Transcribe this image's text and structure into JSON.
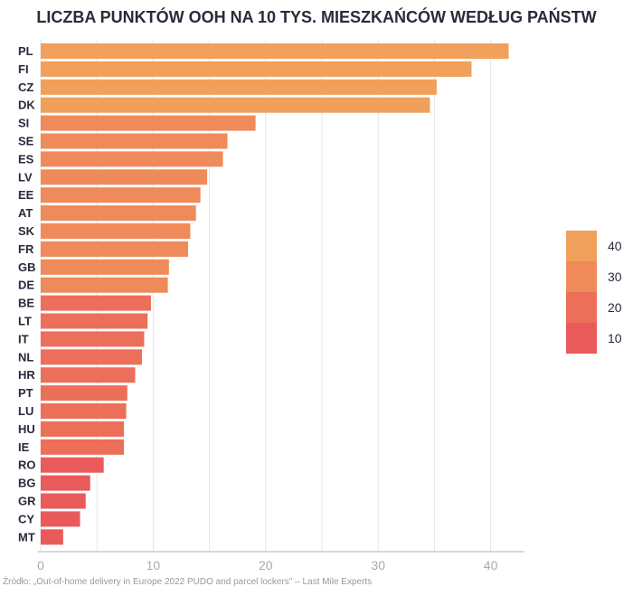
{
  "chart_data": {
    "type": "bar",
    "orientation": "horizontal",
    "title": "LICZBA PUNKTÓW OOH NA 10 TYS. MIESZKAŃCÓW WEDŁUG PAŃSTW",
    "source": "Źródło: „Out-of-home delivery in Europe 2022 PUDO and parcel lockers\" – Last Mile Experts",
    "categories": [
      "PL",
      "FI",
      "CZ",
      "DK",
      "SI",
      "SE",
      "ES",
      "LV",
      "EE",
      "AT",
      "SK",
      "FR",
      "GB",
      "DE",
      "BE",
      "LT",
      "IT",
      "NL",
      "HR",
      "PT",
      "LU",
      "HU",
      "IE",
      "RO",
      "BG",
      "GR",
      "CY",
      "MT"
    ],
    "values": [
      41.6,
      38.3,
      35.2,
      34.6,
      19.1,
      16.6,
      16.2,
      14.8,
      14.2,
      13.8,
      13.3,
      13.1,
      11.4,
      11.3,
      9.8,
      9.5,
      9.2,
      9.0,
      8.4,
      7.7,
      7.6,
      7.4,
      7.4,
      5.6,
      4.4,
      4.0,
      3.5,
      2.0
    ],
    "xlim": [
      0,
      43
    ],
    "xticks": [
      0,
      10,
      20,
      30,
      40
    ],
    "grid": true,
    "legend": {
      "placement": "right",
      "labels": [
        "40",
        "30",
        "20",
        "10"
      ],
      "colors": [
        "#f0a05a",
        "#ef8a5a",
        "#ec6f5a",
        "#e95b5b"
      ]
    },
    "color_bins": [
      {
        "min": 30,
        "color": "#f0a05a"
      },
      {
        "min": 11,
        "color": "#ef8a5a"
      },
      {
        "min": 7,
        "color": "#ec6f5a"
      },
      {
        "min": 0,
        "color": "#e95b5b"
      }
    ]
  }
}
